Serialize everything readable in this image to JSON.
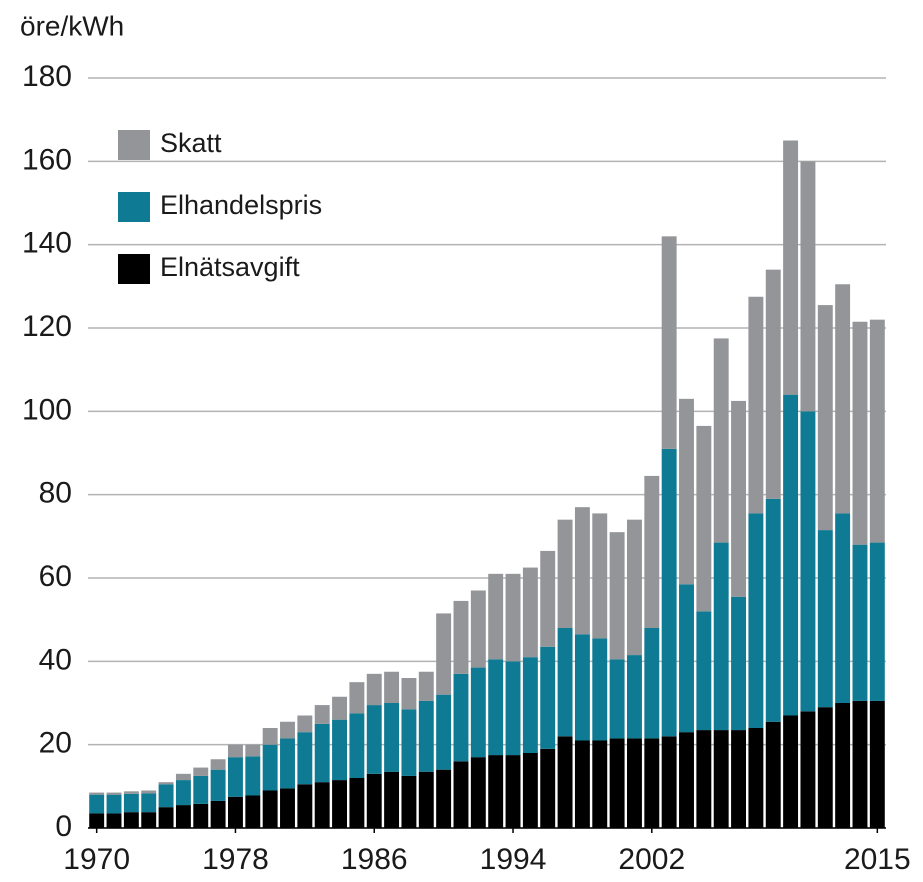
{
  "chart_data": {
    "type": "stacked_bar",
    "ylabel": "öre/kWh",
    "x": [
      1970,
      1971,
      1972,
      1973,
      1974,
      1975,
      1976,
      1977,
      1978,
      1979,
      1980,
      1981,
      1982,
      1983,
      1984,
      1985,
      1986,
      1987,
      1988,
      1989,
      1990,
      1991,
      1992,
      1993,
      1994,
      1995,
      1996,
      1997,
      1998,
      1999,
      2000,
      2001,
      2002,
      2003,
      2004,
      2005,
      2006,
      2007,
      2008,
      2009,
      2010,
      2011,
      2012,
      2013,
      2014,
      2015
    ],
    "xlim": [
      1969.5,
      2015.5
    ],
    "xticks": [
      1970,
      1978,
      1986,
      1994,
      2002,
      2015
    ],
    "ylim": [
      0,
      180
    ],
    "yticks": [
      0,
      20,
      40,
      60,
      80,
      100,
      120,
      140,
      160,
      180
    ],
    "grid": true,
    "legend": "upper left",
    "series": [
      {
        "name": "Elnätsavgift",
        "color": "#000000",
        "values": [
          3.5,
          3.5,
          3.8,
          3.8,
          5,
          5.5,
          5.8,
          6.5,
          7.5,
          7.8,
          9,
          9.5,
          10.5,
          11,
          11.5,
          12,
          13,
          13.5,
          12.5,
          13.5,
          14,
          16,
          17,
          17.5,
          17.5,
          18,
          19,
          22,
          21,
          21,
          21.5,
          21.5,
          21.5,
          22,
          23,
          23.5,
          23.5,
          23.5,
          24,
          25.5,
          27,
          28,
          29,
          30,
          30.5,
          30.5
        ]
      },
      {
        "name": "Elhandelspris",
        "color": "#0f7a93",
        "values": [
          4.5,
          4.5,
          4.4,
          4.5,
          5.5,
          6,
          6.7,
          7.5,
          9.5,
          9.4,
          11,
          12,
          12.5,
          14,
          14.5,
          15.5,
          16.5,
          16.5,
          16,
          17,
          18,
          21,
          21.5,
          23,
          22.5,
          23,
          24.5,
          26,
          25.5,
          24.5,
          19,
          20,
          26.5,
          69,
          35.5,
          28.5,
          45,
          32,
          51.5,
          53.5,
          77,
          72,
          42.5,
          45.5,
          37.5,
          38
        ]
      },
      {
        "name": "Skatt",
        "color": "#939598",
        "values": [
          0.5,
          0.5,
          0.6,
          0.7,
          0.5,
          1.5,
          2,
          2.5,
          3,
          2.8,
          4,
          4,
          4,
          4.5,
          5.5,
          7.5,
          7.5,
          7.5,
          7.5,
          7,
          19.5,
          17.5,
          18.5,
          20.5,
          21,
          21.5,
          23,
          26,
          30.5,
          30,
          30.5,
          32.5,
          36.5,
          51,
          44.5,
          44.5,
          49,
          47,
          52,
          55,
          61,
          60,
          54,
          55,
          53.5,
          53.5
        ]
      }
    ]
  }
}
